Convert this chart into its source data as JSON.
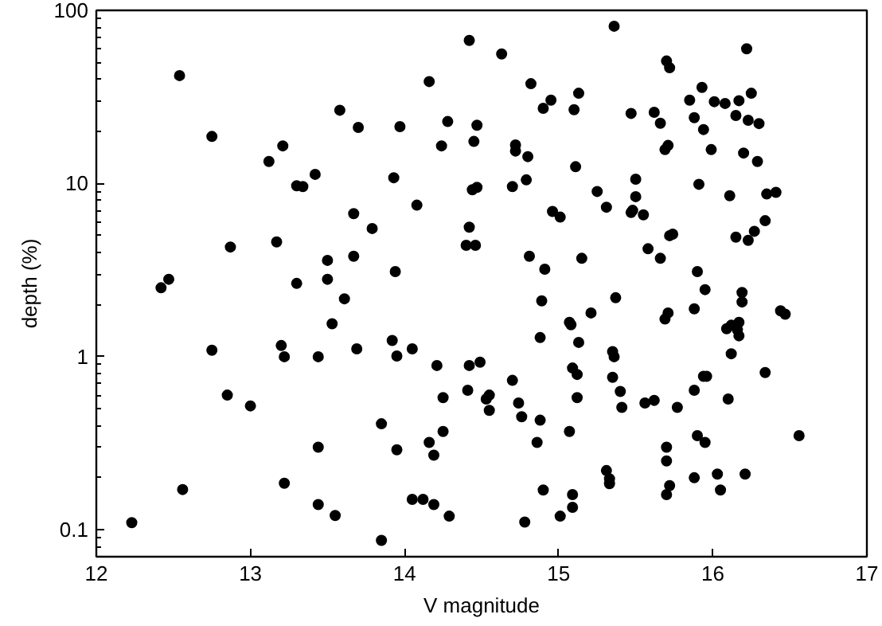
{
  "chart_data": {
    "type": "scatter",
    "xlabel": "V magnitude",
    "ylabel": "depth (%)",
    "log": "y",
    "grid": false,
    "marker": "circle",
    "xlim": [
      12,
      17
    ],
    "ylim": [
      0.07,
      100
    ],
    "xticks": [
      12,
      13,
      14,
      15,
      16,
      17
    ],
    "yticks": [
      0.1,
      1,
      10,
      100
    ],
    "series": [
      {
        "color": "#000000",
        "x": [
          12.54,
          12.75,
          13.21,
          13.12,
          13.42,
          13.3,
          13.34,
          12.87,
          13.17,
          13.5,
          12.47,
          13.5,
          13.58,
          14.42,
          14.63,
          14.16,
          14.82,
          14.95,
          15.13,
          14.9,
          15.1,
          13.7,
          13.97,
          14.28,
          14.47,
          14.24,
          14.45,
          14.72,
          14.72,
          14.8,
          15.11,
          13.93,
          14.44,
          14.47,
          14.7,
          14.79,
          15.25,
          15.31,
          14.08,
          13.67,
          13.79,
          14.96,
          15.01,
          14.42,
          14.4,
          14.46,
          13.67,
          13.94,
          14.81,
          14.91,
          15.15,
          15.36,
          16.22,
          15.7,
          15.72,
          15.93,
          15.85,
          16.01,
          16.08,
          16.17,
          16.25,
          15.47,
          15.62,
          15.66,
          15.88,
          16.15,
          16.23,
          16.3,
          15.94,
          15.69,
          15.71,
          15.99,
          16.2,
          16.29,
          15.5,
          15.5,
          15.91,
          16.11,
          16.35,
          16.41,
          15.47,
          15.48,
          15.55,
          16.34,
          16.27,
          16.15,
          16.23,
          15.72,
          15.74,
          15.58,
          15.66,
          15.9,
          12.42,
          13.3,
          13.53,
          12.75,
          13.2,
          13.22,
          13.44,
          12.85,
          13.0,
          13.44,
          12.56,
          13.22,
          13.44,
          13.55,
          12.23,
          13.61,
          14.89,
          15.21,
          15.07,
          15.08,
          14.88,
          15.13,
          13.92,
          13.95,
          14.05,
          13.69,
          14.21,
          14.42,
          14.49,
          15.09,
          15.12,
          15.35,
          15.36,
          15.35,
          14.7,
          15.12,
          14.25,
          14.41,
          14.53,
          14.55,
          14.55,
          14.74,
          14.76,
          14.88,
          13.85,
          14.25,
          14.16,
          14.19,
          13.95,
          14.86,
          15.07,
          15.31,
          15.33,
          15.33,
          14.9,
          15.09,
          15.09,
          14.05,
          14.12,
          14.19,
          14.29,
          14.78,
          15.01,
          13.85,
          15.95,
          15.37,
          16.19,
          16.19,
          15.88,
          15.69,
          15.71,
          16.44,
          16.47,
          16.09,
          16.12,
          16.17,
          16.16,
          16.17,
          16.12,
          16.34,
          15.4,
          15.41,
          15.56,
          15.62,
          15.77,
          15.88,
          15.94,
          15.96,
          16.1,
          15.7,
          15.7,
          15.9,
          15.95,
          16.56,
          15.88,
          16.03,
          16.05,
          16.21,
          15.72,
          15.7
        ],
        "values": [
          42,
          18.7,
          16.5,
          13.4,
          11.3,
          9.7,
          9.6,
          4.3,
          4.6,
          3.6,
          2.8,
          2.8,
          26.5,
          67,
          56,
          38.8,
          37.7,
          30.3,
          33.2,
          27.2,
          26.7,
          21.1,
          21.3,
          22.8,
          21.7,
          16.5,
          17.5,
          16.7,
          15.4,
          14.3,
          12.5,
          10.8,
          9.2,
          9.5,
          9.6,
          10.5,
          9.0,
          7.3,
          7.5,
          6.7,
          5.5,
          6.9,
          6.4,
          5.6,
          4.4,
          4.4,
          3.8,
          3.1,
          3.8,
          3.2,
          3.7,
          81,
          60,
          51,
          46.6,
          35.9,
          30.3,
          29.7,
          29.0,
          30.1,
          33.2,
          25.4,
          25.8,
          22.3,
          24.0,
          24.7,
          23.2,
          22.2,
          20.5,
          15.7,
          16.6,
          15.7,
          15.0,
          13.4,
          10.6,
          8.4,
          9.9,
          8.5,
          8.7,
          8.9,
          6.8,
          7.0,
          6.6,
          6.1,
          5.3,
          4.9,
          4.7,
          5.0,
          5.1,
          4.2,
          3.7,
          3.1,
          2.5,
          2.65,
          1.55,
          1.09,
          1.16,
          1.0,
          1.0,
          0.6,
          0.52,
          0.3,
          0.171,
          0.186,
          0.14,
          0.121,
          0.11,
          2.16,
          2.1,
          1.79,
          1.58,
          1.53,
          1.29,
          1.21,
          1.24,
          1.01,
          1.11,
          1.11,
          0.89,
          0.89,
          0.93,
          0.86,
          0.79,
          1.07,
          1.0,
          0.76,
          0.73,
          0.58,
          0.58,
          0.64,
          0.57,
          0.6,
          0.49,
          0.54,
          0.45,
          0.43,
          0.41,
          0.37,
          0.32,
          0.27,
          0.29,
          0.32,
          0.37,
          0.22,
          0.197,
          0.185,
          0.17,
          0.16,
          0.135,
          0.15,
          0.15,
          0.14,
          0.12,
          0.111,
          0.12,
          0.087,
          2.44,
          2.19,
          2.35,
          2.07,
          1.89,
          1.65,
          1.79,
          1.84,
          1.76,
          1.45,
          1.52,
          1.58,
          1.43,
          1.32,
          1.04,
          0.81,
          0.63,
          0.51,
          0.54,
          0.56,
          0.51,
          0.64,
          0.77,
          0.77,
          0.57,
          0.3,
          0.25,
          0.35,
          0.32,
          0.35,
          0.2,
          0.21,
          0.17,
          0.21,
          0.18,
          0.16
        ]
      }
    ]
  }
}
